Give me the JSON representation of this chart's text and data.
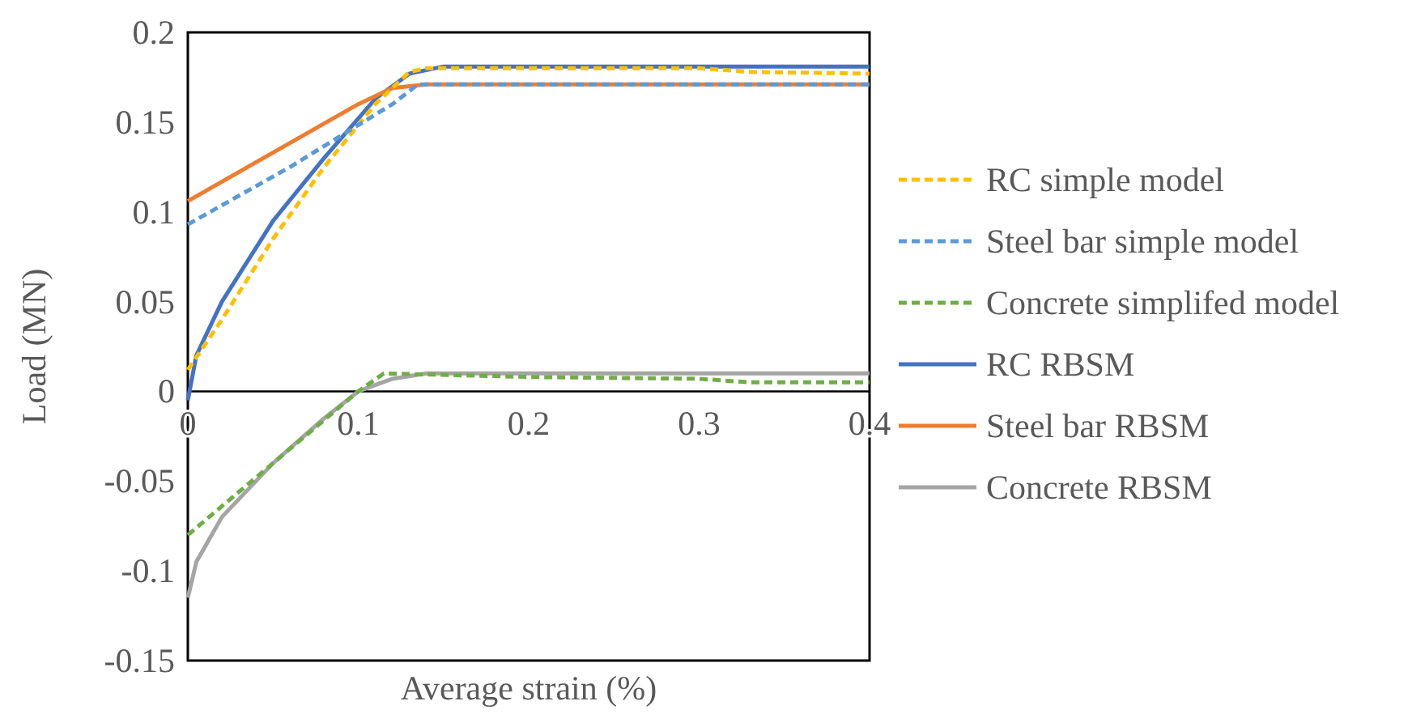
{
  "chart_data": {
    "type": "line",
    "xlabel": "Average strain (%)",
    "ylabel": "Load (MN)",
    "xlim": [
      0,
      0.4
    ],
    "xticks": [
      0,
      0.1,
      0.2,
      0.3,
      0.4
    ],
    "ylim": [
      -0.15,
      0.2
    ],
    "yticks": [
      -0.15,
      -0.1,
      -0.05,
      0,
      0.05,
      0.1,
      0.15,
      0.2
    ],
    "grid": false,
    "legend": "right",
    "marker": "none",
    "series": [
      {
        "name": "RC simple model",
        "color": "#ffc000",
        "line_style": "dashed",
        "x": [
          0,
          0.02,
          0.05,
          0.08,
          0.11,
          0.13,
          0.14,
          0.3,
          0.33,
          0.4
        ],
        "values": [
          0.012,
          0.04,
          0.085,
          0.125,
          0.16,
          0.178,
          0.18,
          0.18,
          0.178,
          0.177
        ]
      },
      {
        "name": "Steel bar simple model",
        "color": "#5b9bd5",
        "line_style": "dashed",
        "x": [
          0,
          0.06,
          0.12,
          0.135,
          0.4
        ],
        "values": [
          0.093,
          0.125,
          0.16,
          0.171,
          0.171
        ]
      },
      {
        "name": "Concrete simplifed model",
        "color": "#70ad47",
        "line_style": "dashed",
        "x": [
          0,
          0.05,
          0.1,
          0.115,
          0.2,
          0.3,
          0.33,
          0.4
        ],
        "values": [
          -0.08,
          -0.04,
          0.0,
          0.01,
          0.008,
          0.007,
          0.005,
          0.005
        ]
      },
      {
        "name": "RC RBSM",
        "color": "#4472c4",
        "line_style": "solid",
        "x": [
          0,
          0.005,
          0.02,
          0.05,
          0.08,
          0.11,
          0.13,
          0.15,
          0.4
        ],
        "values": [
          -0.005,
          0.02,
          0.05,
          0.095,
          0.13,
          0.163,
          0.177,
          0.181,
          0.181
        ]
      },
      {
        "name": "Steel bar  RBSM",
        "color": "#ed7d31",
        "line_style": "solid",
        "x": [
          0,
          0.1,
          0.12,
          0.14,
          0.4
        ],
        "values": [
          0.106,
          0.16,
          0.169,
          0.171,
          0.171
        ]
      },
      {
        "name": "Concrete  RBSM",
        "color": "#a5a5a5",
        "line_style": "solid",
        "x": [
          0,
          0.005,
          0.02,
          0.05,
          0.08,
          0.1,
          0.12,
          0.14,
          0.4
        ],
        "values": [
          -0.115,
          -0.095,
          -0.07,
          -0.04,
          -0.015,
          0,
          0.007,
          0.01,
          0.01
        ]
      }
    ]
  }
}
